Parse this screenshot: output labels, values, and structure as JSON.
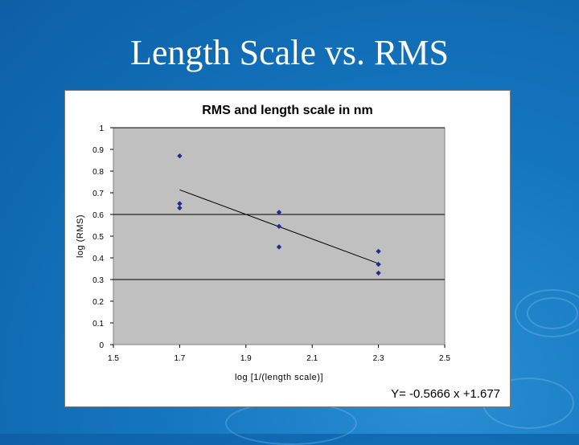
{
  "slide": {
    "title": "Length Scale vs. RMS"
  },
  "chart_data": {
    "type": "scatter",
    "title": "RMS and length scale in nm",
    "xlabel": "log [1/(length scale)]",
    "ylabel": "log (RMS)",
    "xlim": [
      1.5,
      2.5
    ],
    "ylim": [
      0,
      1
    ],
    "x_ticks": [
      "1.5",
      "1.7",
      "1.9",
      "2.1",
      "2.3",
      "2.5"
    ],
    "y_ticks": [
      "0",
      "0.1",
      "0.2",
      "0.3",
      "0.4",
      "0.5",
      "0.6",
      "0.7",
      "0.8",
      "0.9",
      "1"
    ],
    "gridlines_y": [
      0.3,
      0.6,
      1.0
    ],
    "points": [
      {
        "x": 1.7,
        "y": 0.87
      },
      {
        "x": 1.7,
        "y": 0.65
      },
      {
        "x": 1.7,
        "y": 0.63
      },
      {
        "x": 2.0,
        "y": 0.61
      },
      {
        "x": 2.0,
        "y": 0.545
      },
      {
        "x": 2.0,
        "y": 0.45
      },
      {
        "x": 2.3,
        "y": 0.43
      },
      {
        "x": 2.3,
        "y": 0.37
      },
      {
        "x": 2.3,
        "y": 0.33
      }
    ],
    "trendline": {
      "x": [
        1.7,
        2.3
      ],
      "y": [
        0.7137,
        0.3738
      ]
    },
    "equation": "Y= -0.5666 x +1.677",
    "marker_color": "#1f2d8f",
    "background": "#c0c0c0",
    "grid": true,
    "legend": false
  }
}
